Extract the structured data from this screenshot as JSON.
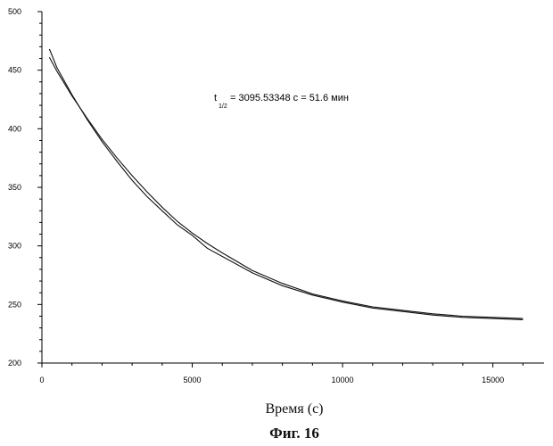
{
  "chart_data": {
    "type": "line",
    "title": "",
    "xlabel": "Время (с)",
    "ylabel": "",
    "xlim": [
      0,
      17000
    ],
    "ylim": [
      200,
      500
    ],
    "x_ticks": [
      0,
      5000,
      10000,
      15000
    ],
    "y_ticks": [
      200,
      250,
      300,
      350,
      400,
      450,
      500
    ],
    "grid": false,
    "annotation": {
      "t_symbol": "t",
      "t_subscript": "1/2",
      "text": "= 3095.53348 c = 51.6 мин"
    },
    "series": [
      {
        "x": [
          250,
          500,
          1000,
          1500,
          2000,
          2500,
          3000,
          3500,
          4000,
          4500,
          5000,
          5500,
          6000,
          7000,
          8000,
          9000,
          10000,
          11000,
          12000,
          13000,
          14000,
          15000,
          16000
        ],
        "values": [
          468,
          452,
          429,
          408,
          389,
          372,
          356,
          342,
          330,
          318,
          309,
          298,
          291,
          277,
          266,
          258,
          252,
          247,
          244,
          241,
          239,
          238,
          237
        ]
      },
      {
        "x": [
          250,
          500,
          1000,
          1500,
          2000,
          2500,
          3000,
          3500,
          4000,
          4500,
          5000,
          5500,
          6000,
          7000,
          8000,
          9000,
          10000,
          11000,
          12000,
          13000,
          14000,
          15000,
          16000
        ],
        "values": [
          461,
          449,
          428,
          409,
          391,
          375,
          360,
          346,
          333,
          321,
          311,
          302,
          294,
          279,
          268,
          259,
          253,
          248,
          245,
          242,
          240,
          239,
          238
        ]
      }
    ]
  },
  "caption": "Фиг. 16"
}
